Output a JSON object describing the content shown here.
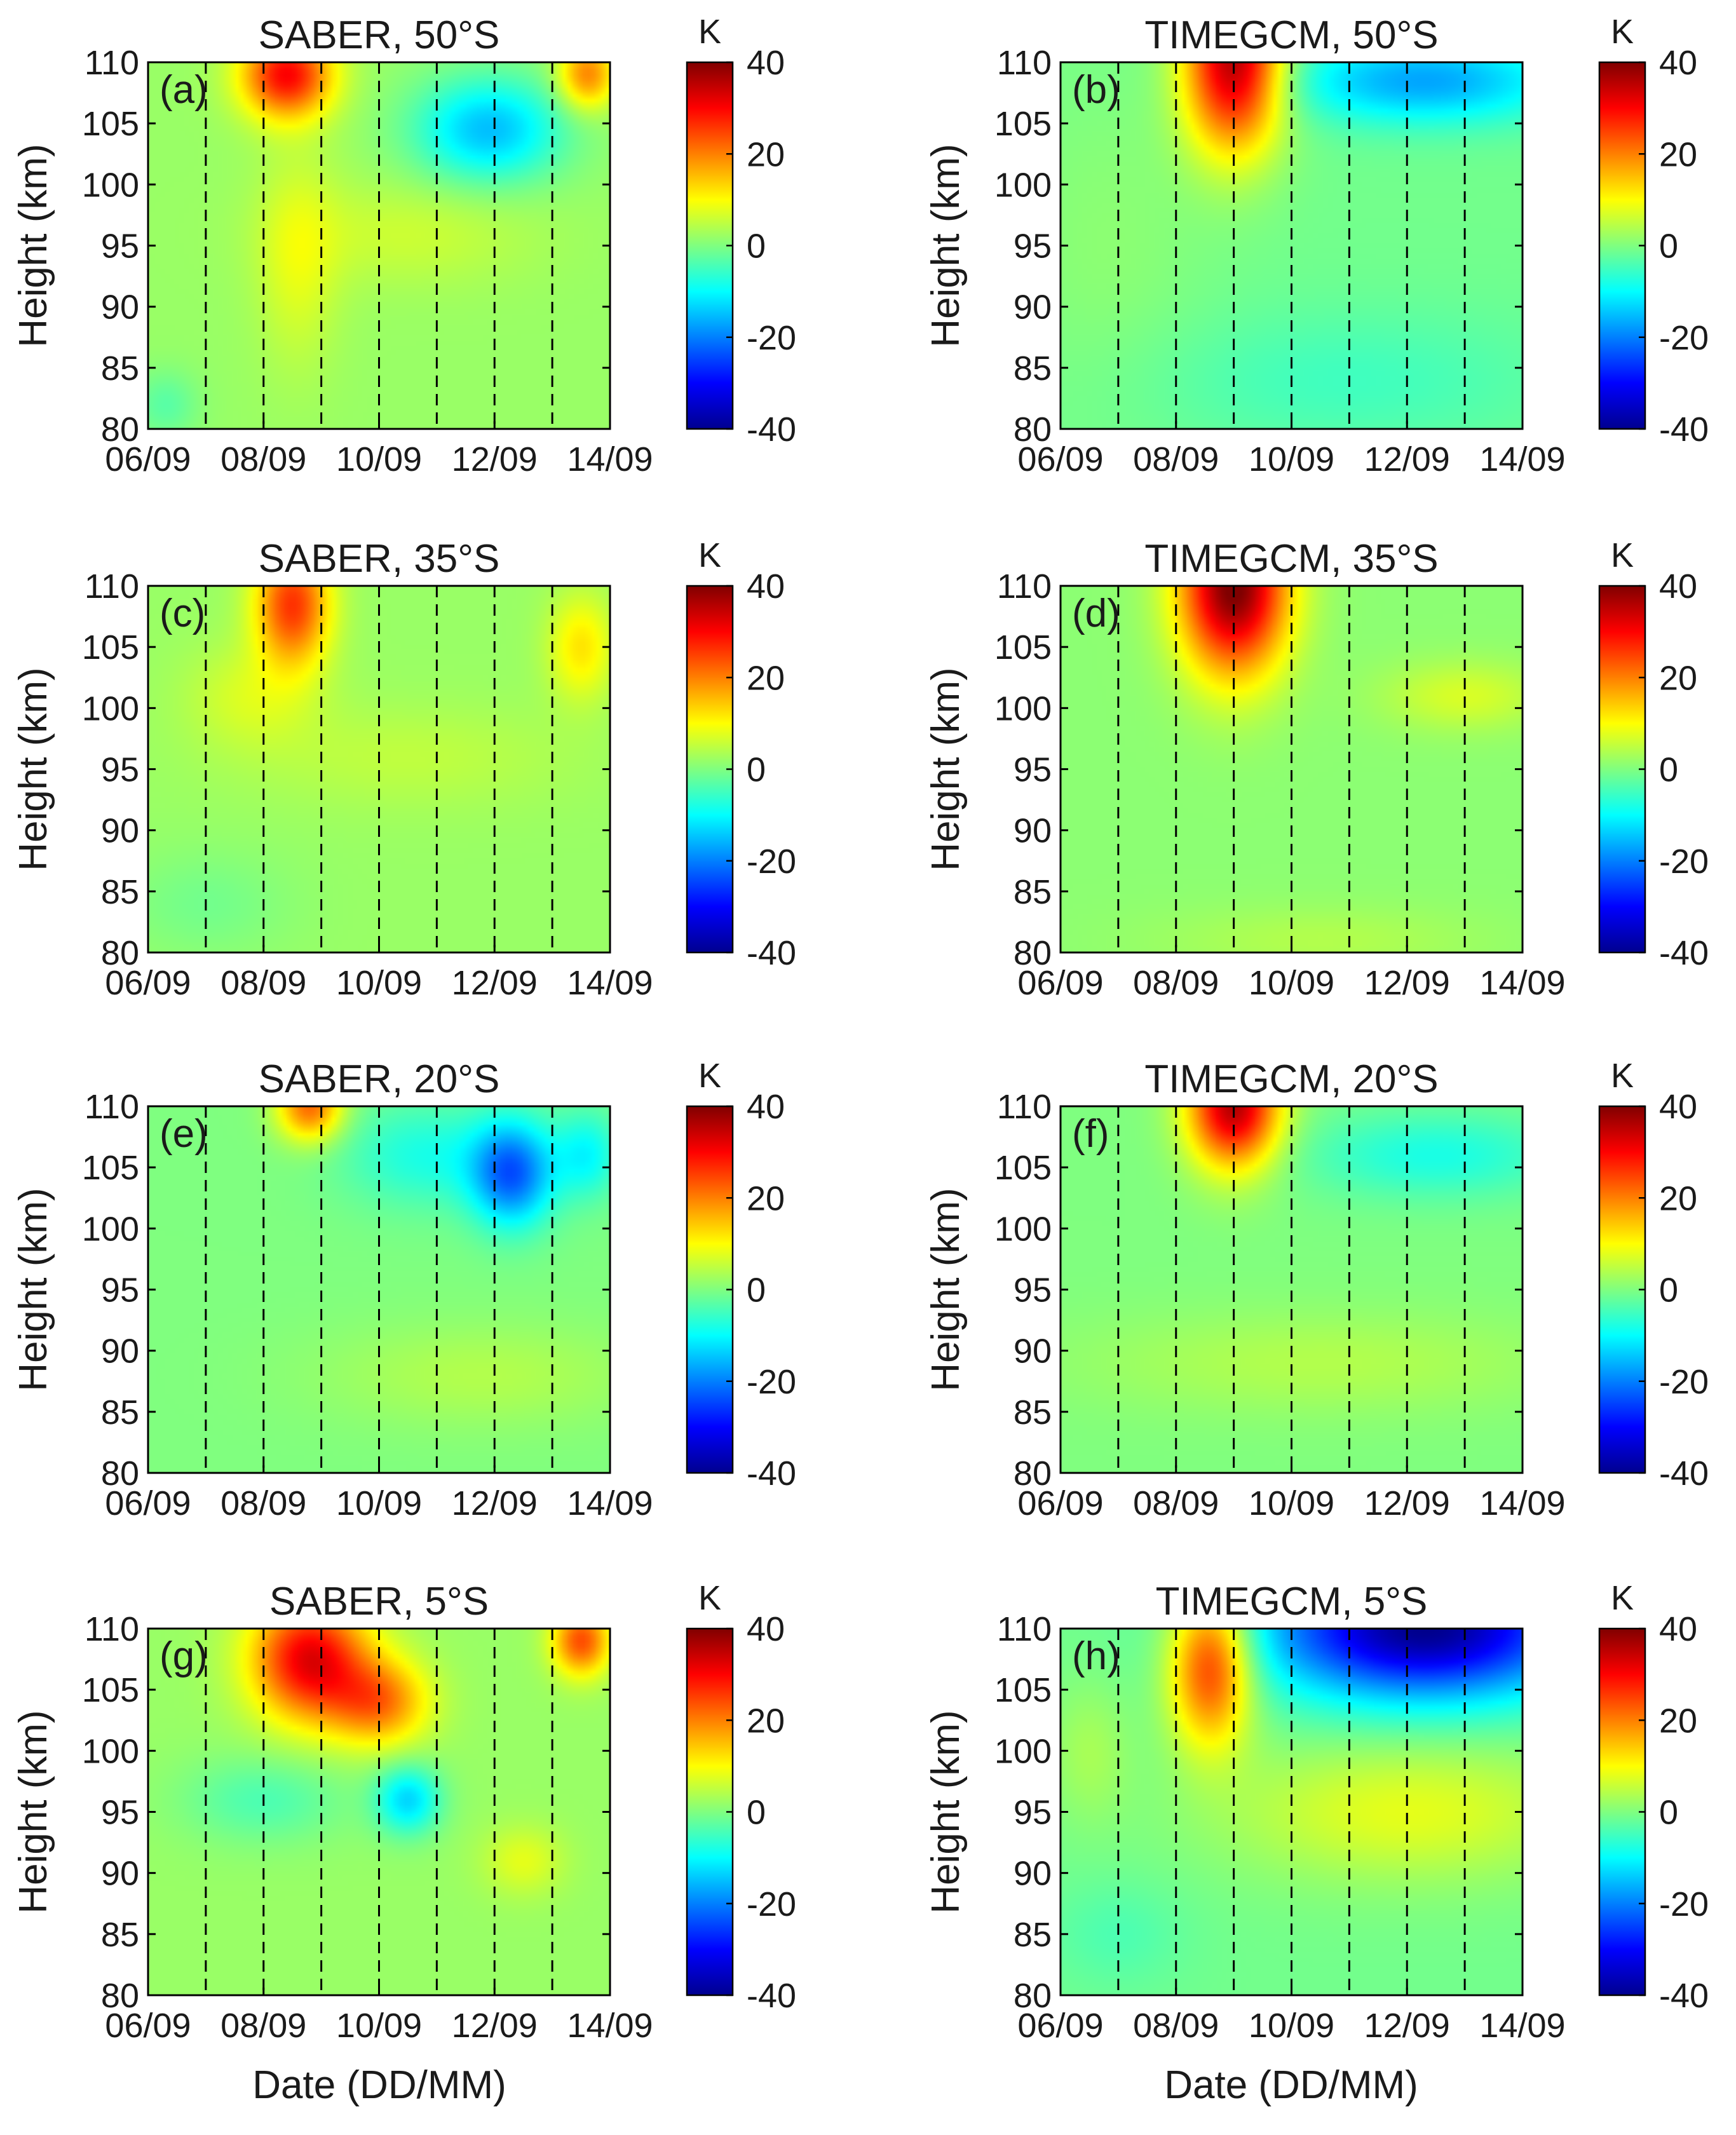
{
  "figure": {
    "xlabel": "Date (DD/MM)",
    "colorbar_unit": "K",
    "colorbar_ticks": [
      "40",
      "20",
      "0",
      "-20",
      "-40"
    ],
    "colormap": "jet",
    "colors": {
      "dashed_line": "#000000",
      "axes": "#000000",
      "background": "#ffffff"
    }
  },
  "chart_data": [
    {
      "type": "heatmap",
      "panel": "(a)",
      "title": "SABER, 50°S",
      "xlabel": "Date (DD/MM)",
      "ylabel": "Height (km)",
      "x_tick_labels": [
        "06/09",
        "08/09",
        "10/09",
        "12/09",
        "14/09"
      ],
      "y_tick_labels": [
        "110",
        "105",
        "100",
        "95",
        "90",
        "85",
        "80"
      ],
      "xlim": [
        0,
        8
      ],
      "ylim": [
        80,
        110
      ],
      "clim": [
        -40,
        40
      ],
      "dashed_days": [
        1,
        2,
        3,
        4,
        5,
        6,
        7
      ],
      "background_k": 2,
      "features": [
        {
          "x": 2.4,
          "y": 109,
          "sx": 0.55,
          "sy": 2.5,
          "a": 28
        },
        {
          "x": 7.6,
          "y": 109,
          "sx": 0.35,
          "sy": 2.0,
          "a": 18
        },
        {
          "x": 5.9,
          "y": 104.5,
          "sx": 0.9,
          "sy": 3.0,
          "a": -17
        },
        {
          "x": 2.6,
          "y": 94,
          "sx": 0.5,
          "sy": 6.0,
          "a": 6
        },
        {
          "x": 4.5,
          "y": 96,
          "sx": 1.5,
          "sy": 3.0,
          "a": 4
        },
        {
          "x": 0.3,
          "y": 82,
          "sx": 0.4,
          "sy": 2.0,
          "a": -5
        }
      ]
    },
    {
      "type": "heatmap",
      "panel": "(b)",
      "title": "TIMEGCM, 50°S",
      "xlabel": "Date (DD/MM)",
      "ylabel": "Height (km)",
      "x_tick_labels": [
        "06/09",
        "08/09",
        "10/09",
        "12/09",
        "14/09"
      ],
      "y_tick_labels": [
        "110",
        "105",
        "100",
        "95",
        "90",
        "85",
        "80"
      ],
      "xlim": [
        0,
        8
      ],
      "ylim": [
        80,
        110
      ],
      "clim": [
        -40,
        40
      ],
      "dashed_days": [
        1,
        2,
        3,
        4,
        5,
        6,
        7
      ],
      "background_k": -1,
      "features": [
        {
          "x": 3.0,
          "y": 110,
          "sx": 0.6,
          "sy": 5.0,
          "a": 38
        },
        {
          "x": 6.3,
          "y": 108.5,
          "sx": 1.7,
          "sy": 2.5,
          "a": -16
        },
        {
          "x": 5.0,
          "y": 84,
          "sx": 2.5,
          "sy": 4.0,
          "a": -4
        },
        {
          "x": 0.8,
          "y": 95,
          "sx": 1.2,
          "sy": 10.0,
          "a": 2
        }
      ]
    },
    {
      "type": "heatmap",
      "panel": "(c)",
      "title": "SABER, 35°S",
      "xlabel": "Date (DD/MM)",
      "ylabel": "Height (km)",
      "x_tick_labels": [
        "06/09",
        "08/09",
        "10/09",
        "12/09",
        "14/09"
      ],
      "y_tick_labels": [
        "110",
        "105",
        "100",
        "95",
        "90",
        "85",
        "80"
      ],
      "xlim": [
        0,
        8
      ],
      "ylim": [
        80,
        110
      ],
      "clim": [
        -40,
        40
      ],
      "dashed_days": [
        1,
        2,
        3,
        4,
        5,
        6,
        7
      ],
      "background_k": 2,
      "features": [
        {
          "x": 2.5,
          "y": 108.5,
          "sx": 0.45,
          "sy": 3.5,
          "a": 24
        },
        {
          "x": 7.5,
          "y": 105,
          "sx": 0.4,
          "sy": 3.0,
          "a": 10
        },
        {
          "x": 1.8,
          "y": 101,
          "sx": 0.8,
          "sy": 3.0,
          "a": 5
        },
        {
          "x": 4.5,
          "y": 96,
          "sx": 2.0,
          "sy": 3.0,
          "a": 3
        },
        {
          "x": 1.0,
          "y": 84,
          "sx": 1.0,
          "sy": 3.0,
          "a": -3
        }
      ]
    },
    {
      "type": "heatmap",
      "panel": "(d)",
      "title": "TIMEGCM, 35°S",
      "xlabel": "Date (DD/MM)",
      "ylabel": "Height (km)",
      "x_tick_labels": [
        "06/09",
        "08/09",
        "10/09",
        "12/09",
        "14/09"
      ],
      "y_tick_labels": [
        "110",
        "105",
        "100",
        "95",
        "90",
        "85",
        "80"
      ],
      "xlim": [
        0,
        8
      ],
      "ylim": [
        80,
        110
      ],
      "clim": [
        -40,
        40
      ],
      "dashed_days": [
        1,
        2,
        3,
        4,
        5,
        6,
        7
      ],
      "background_k": 1,
      "features": [
        {
          "x": 3.0,
          "y": 110,
          "sx": 0.65,
          "sy": 5.0,
          "a": 40
        },
        {
          "x": 7.0,
          "y": 101,
          "sx": 1.0,
          "sy": 2.0,
          "a": 6
        },
        {
          "x": 4.5,
          "y": 81,
          "sx": 2.0,
          "sy": 2.0,
          "a": 3
        }
      ]
    },
    {
      "type": "heatmap",
      "panel": "(e)",
      "title": "SABER, 20°S",
      "xlabel": "Date (DD/MM)",
      "ylabel": "Height (km)",
      "x_tick_labels": [
        "06/09",
        "08/09",
        "10/09",
        "12/09",
        "14/09"
      ],
      "y_tick_labels": [
        "110",
        "105",
        "100",
        "95",
        "90",
        "85",
        "80"
      ],
      "xlim": [
        0,
        8
      ],
      "ylim": [
        80,
        110
      ],
      "clim": [
        -40,
        40
      ],
      "dashed_days": [
        1,
        2,
        3,
        4,
        5,
        6,
        7
      ],
      "background_k": 0,
      "features": [
        {
          "x": 2.8,
          "y": 110,
          "sx": 0.4,
          "sy": 2.0,
          "a": 22
        },
        {
          "x": 6.3,
          "y": 104.5,
          "sx": 0.5,
          "sy": 3.0,
          "a": -22
        },
        {
          "x": 4.8,
          "y": 106,
          "sx": 1.0,
          "sy": 3.0,
          "a": -8
        },
        {
          "x": 7.6,
          "y": 106,
          "sx": 0.4,
          "sy": 2.5,
          "a": -10
        },
        {
          "x": 5.8,
          "y": 88,
          "sx": 2.0,
          "sy": 3.0,
          "a": 4
        }
      ]
    },
    {
      "type": "heatmap",
      "panel": "(f)",
      "title": "TIMEGCM, 20°S",
      "xlabel": "Date (DD/MM)",
      "ylabel": "Height (km)",
      "x_tick_labels": [
        "06/09",
        "08/09",
        "10/09",
        "12/09",
        "14/09"
      ],
      "y_tick_labels": [
        "110",
        "105",
        "100",
        "95",
        "90",
        "85",
        "80"
      ],
      "xlim": [
        0,
        8
      ],
      "ylim": [
        80,
        110
      ],
      "clim": [
        -40,
        40
      ],
      "dashed_days": [
        1,
        2,
        3,
        4,
        5,
        6,
        7
      ],
      "background_k": 0,
      "features": [
        {
          "x": 3.0,
          "y": 110,
          "sx": 0.55,
          "sy": 3.5,
          "a": 36
        },
        {
          "x": 6.5,
          "y": 106,
          "sx": 1.6,
          "sy": 2.5,
          "a": -8
        },
        {
          "x": 4.5,
          "y": 89,
          "sx": 3.0,
          "sy": 3.0,
          "a": 4
        }
      ]
    },
    {
      "type": "heatmap",
      "panel": "(g)",
      "title": "SABER, 5°S",
      "xlabel": "Date (DD/MM)",
      "ylabel": "Height (km)",
      "x_tick_labels": [
        "06/09",
        "08/09",
        "10/09",
        "12/09",
        "14/09"
      ],
      "y_tick_labels": [
        "110",
        "105",
        "100",
        "95",
        "90",
        "85",
        "80"
      ],
      "xlim": [
        0,
        8
      ],
      "ylim": [
        80,
        110
      ],
      "clim": [
        -40,
        40
      ],
      "dashed_days": [
        1,
        2,
        3,
        4,
        5,
        6,
        7
      ],
      "background_k": 2,
      "features": [
        {
          "x": 2.8,
          "y": 107.5,
          "sx": 0.7,
          "sy": 3.5,
          "a": 30
        },
        {
          "x": 4.0,
          "y": 104,
          "sx": 0.6,
          "sy": 2.5,
          "a": 18
        },
        {
          "x": 7.5,
          "y": 109,
          "sx": 0.35,
          "sy": 2.0,
          "a": 22
        },
        {
          "x": 4.5,
          "y": 96,
          "sx": 0.4,
          "sy": 2.0,
          "a": -15
        },
        {
          "x": 2.0,
          "y": 96,
          "sx": 1.0,
          "sy": 2.5,
          "a": -6
        },
        {
          "x": 6.5,
          "y": 91,
          "sx": 0.5,
          "sy": 2.0,
          "a": 6
        }
      ]
    },
    {
      "type": "heatmap",
      "panel": "(h)",
      "title": "TIMEGCM, 5°S",
      "xlabel": "Date (DD/MM)",
      "ylabel": "Height (km)",
      "x_tick_labels": [
        "06/09",
        "08/09",
        "10/09",
        "12/09",
        "14/09"
      ],
      "y_tick_labels": [
        "110",
        "105",
        "100",
        "95",
        "90",
        "85",
        "80"
      ],
      "xlim": [
        0,
        8
      ],
      "ylim": [
        80,
        110
      ],
      "clim": [
        -40,
        40
      ],
      "dashed_days": [
        1,
        2,
        3,
        4,
        5,
        6,
        7
      ],
      "background_k": -1,
      "features": [
        {
          "x": 2.6,
          "y": 107,
          "sx": 0.5,
          "sy": 4.5,
          "a": 28
        },
        {
          "x": 6.3,
          "y": 110,
          "sx": 1.9,
          "sy": 4.0,
          "a": -38
        },
        {
          "x": 6.0,
          "y": 95,
          "sx": 2.2,
          "sy": 4.0,
          "a": 9
        },
        {
          "x": 0.5,
          "y": 100,
          "sx": 0.5,
          "sy": 4.0,
          "a": 4
        },
        {
          "x": 1.0,
          "y": 85,
          "sx": 0.8,
          "sy": 3.0,
          "a": -3
        }
      ]
    }
  ]
}
